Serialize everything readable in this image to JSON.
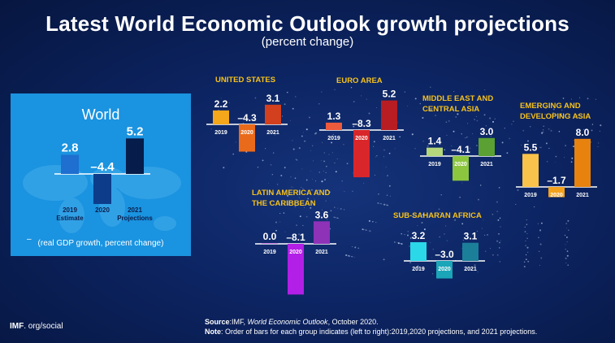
{
  "title": "Latest World Economic Outlook growth projections",
  "subtitle": "(percent change)",
  "world_panel": {
    "heading": "World",
    "note": "(real GDP growth, percent change)",
    "dash": "–"
  },
  "footer": {
    "source_label": "Source",
    "source_text": ":IMF, ",
    "source_pub": "World Economic Outlook",
    "source_date": ", October 2020.",
    "note_label": "Note",
    "note_text": ": Order of bars for each group indicates (left to right):2019,2020 projections, and 2021 projections."
  },
  "logo": {
    "brand": "IMF",
    "suffix": ". org/social"
  },
  "chart_data": [
    {
      "type": "bar",
      "name": "World",
      "categories": [
        "2019",
        "2020",
        "2021"
      ],
      "category_sublabels": [
        "Estimate",
        "",
        "Projections"
      ],
      "values": [
        2.8,
        -4.4,
        5.2
      ],
      "value_labels": [
        "2.8",
        "–4.4",
        "5.2"
      ],
      "colors": [
        "#1e6fd0",
        "#0c3c8a",
        "#061c4a"
      ]
    },
    {
      "type": "bar",
      "name": "UNITED STATES",
      "categories": [
        "2019",
        "2020",
        "2021"
      ],
      "values": [
        2.2,
        -4.3,
        3.1
      ],
      "value_labels": [
        "2.2",
        "–4.3",
        "3.1"
      ],
      "colors": [
        "#f4a71a",
        "#ea6a1b",
        "#d2401e"
      ]
    },
    {
      "type": "bar",
      "name": "EURO AREA",
      "categories": [
        "2019",
        "2020",
        "2021"
      ],
      "values": [
        1.3,
        -8.3,
        5.2
      ],
      "value_labels": [
        "1.3",
        "–8.3",
        "5.2"
      ],
      "colors": [
        "#ee5a3c",
        "#d9262a",
        "#b71d22"
      ]
    },
    {
      "type": "bar",
      "name": "MIDDLE EAST AND CENTRAL ASIA",
      "categories": [
        "2019",
        "2020",
        "2021"
      ],
      "values": [
        1.4,
        -4.1,
        3.0
      ],
      "value_labels": [
        "1.4",
        "–4.1",
        "3.0"
      ],
      "colors": [
        "#b5d67a",
        "#8cc63f",
        "#5aa032"
      ]
    },
    {
      "type": "bar",
      "name": "EMERGING AND DEVELOPING ASIA",
      "categories": [
        "2019",
        "2020",
        "2021"
      ],
      "values": [
        5.5,
        -1.7,
        8.0
      ],
      "value_labels": [
        "5.5",
        "–1.7",
        "8.0"
      ],
      "colors": [
        "#f9c24a",
        "#f3a11c",
        "#e8820e"
      ]
    },
    {
      "type": "bar",
      "name": "LATIN AMERICA AND THE CARIBBEAN",
      "categories": [
        "2019",
        "2020",
        "2021"
      ],
      "values": [
        0.0,
        -8.1,
        3.6
      ],
      "value_labels": [
        "0.0",
        "–8.1",
        "3.6"
      ],
      "colors": [
        "#c77ce0",
        "#b21fe6",
        "#8e32b8"
      ]
    },
    {
      "type": "bar",
      "name": "SUB-SAHARAN AFRICA",
      "categories": [
        "2019",
        "2020",
        "2021"
      ],
      "values": [
        3.2,
        -3.0,
        3.1
      ],
      "value_labels": [
        "3.2",
        "–3.0",
        "3.1"
      ],
      "colors": [
        "#2bd8e8",
        "#1aa6b8",
        "#1b7f99"
      ]
    }
  ]
}
